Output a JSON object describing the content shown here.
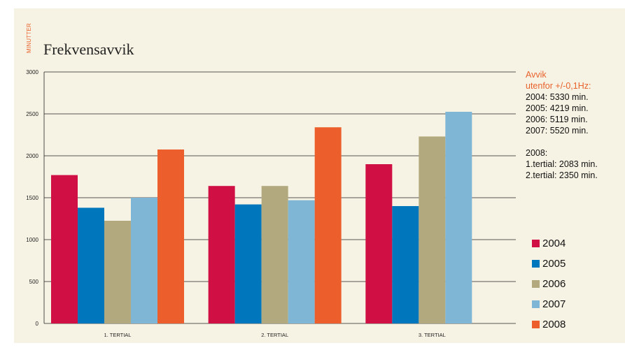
{
  "chart_data": {
    "type": "bar",
    "title": "Frekvensavvik",
    "ylabel": "MINUTTER",
    "xlabel": "",
    "categories": [
      "1. TERTIAL",
      "2. TERTIAL",
      "3. TERTIAL"
    ],
    "ylim": [
      0,
      3000
    ],
    "yticks": [
      0,
      500,
      1000,
      1500,
      2000,
      2500,
      3000
    ],
    "grid": true,
    "legend_position": "right",
    "series": [
      {
        "name": "2004",
        "color": "#d01044",
        "values": [
          1770,
          1640,
          1900
        ]
      },
      {
        "name": "2005",
        "color": "#0076bd",
        "values": [
          1380,
          1420,
          1400
        ]
      },
      {
        "name": "2006",
        "color": "#b2aa7e",
        "values": [
          1225,
          1640,
          2230
        ]
      },
      {
        "name": "2007",
        "color": "#7fb5d5",
        "values": [
          1500,
          1470,
          2525
        ]
      },
      {
        "name": "2008",
        "color": "#ec5f2d",
        "values": [
          2075,
          2340,
          null
        ]
      }
    ]
  },
  "notes": {
    "heading1": "Avvik",
    "heading2": "utenfor +/-0,1Hz:",
    "line2004": "2004: 5330 min.",
    "line2005": "2005: 4219 min.",
    "line2006": "2006: 5119 min.",
    "line2007": "2007: 5520 min.",
    "line2008": "2008:",
    "tertial1": "1.tertial: 2083 min.",
    "tertial2": "2.tertial: 2350 min."
  },
  "colors": {
    "panel_background": "#f7f3e4",
    "accent": "#e8622c"
  }
}
